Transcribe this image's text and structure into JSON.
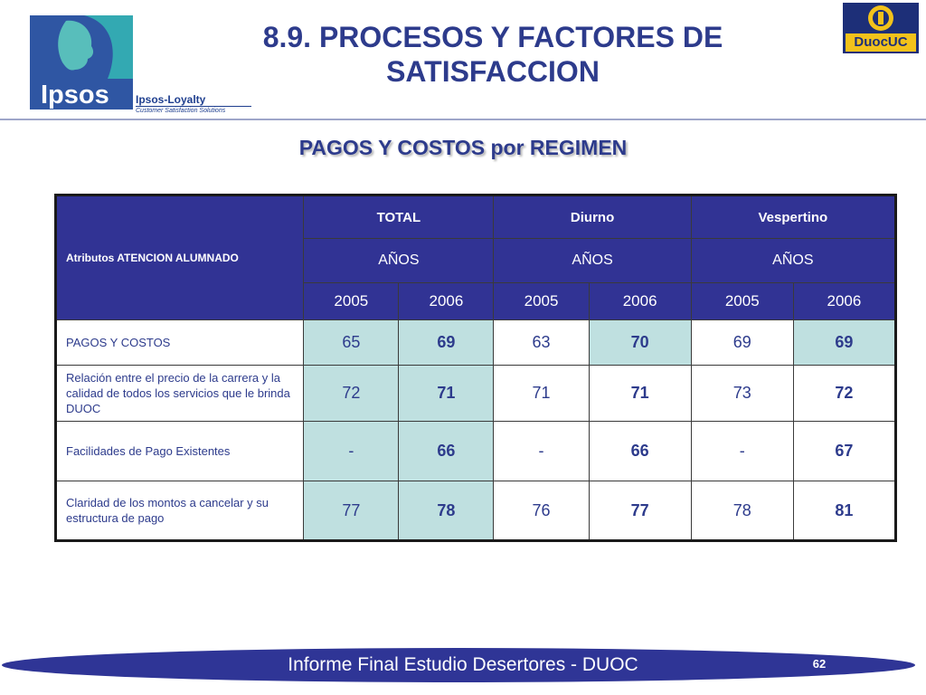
{
  "header": {
    "logo_left": "Ipsos",
    "sub_brand_name": "Ipsos-Loyalty",
    "sub_brand_tagline": "Customer Satisfaction Solutions",
    "title_line1": "8.9. PROCESOS Y FACTORES DE",
    "title_line2": "SATISFACCION",
    "logo_right": "DuocUC"
  },
  "subtitle": "PAGOS Y COSTOS por REGIMEN",
  "table": {
    "corner_label": "Atributos ATENCION ALUMNADO",
    "groups": [
      "TOTAL",
      "Diurno",
      "Vespertino"
    ],
    "group_sub": [
      "AÑOS",
      "AÑOS",
      "AÑOS"
    ],
    "years": [
      "2005",
      "2006",
      "2005",
      "2006",
      "2005",
      "2006"
    ],
    "rows": [
      {
        "label": "PAGOS Y COSTOS",
        "values": [
          "65",
          "69",
          "63",
          "70",
          "69",
          "69"
        ]
      },
      {
        "label": "Relación entre el precio de la carrera y la calidad de todos los servicios que le brinda DUOC",
        "values": [
          "72",
          "71",
          "71",
          "71",
          "73",
          "72"
        ]
      },
      {
        "label": "Facilidades de Pago Existentes",
        "values": [
          "-",
          "66",
          "-",
          "66",
          "-",
          "67"
        ]
      },
      {
        "label": "Claridad de los montos a cancelar y su estructura de pago",
        "values": [
          "77",
          "78",
          "76",
          "77",
          "78",
          "81"
        ]
      }
    ]
  },
  "footer": {
    "text": "Informe Final Estudio Desertores - DUOC",
    "page_number": "62"
  },
  "colors": {
    "title_blue": "#2d3b8c",
    "header_fill": "#313394",
    "shade_fill": "#bfe0e0",
    "ipsos_blue": "#2f56a3",
    "duoc_yellow": "#f2c21b"
  }
}
